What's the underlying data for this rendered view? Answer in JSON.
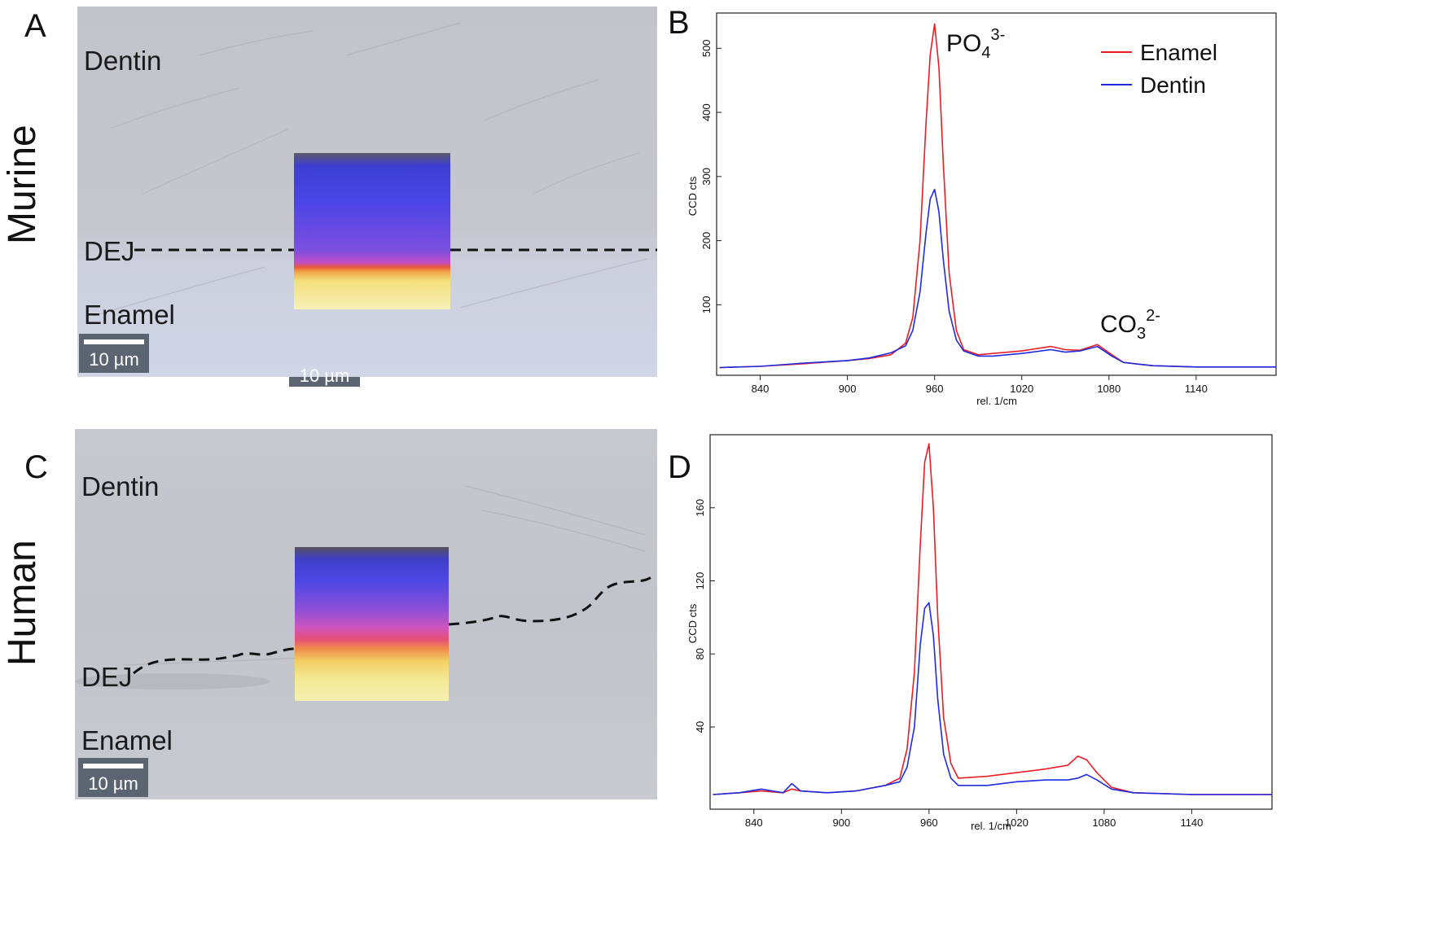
{
  "panels": {
    "a": {
      "letter": "A",
      "species": "Murine"
    },
    "b": {
      "letter": "B"
    },
    "c": {
      "letter": "C",
      "species": "Human"
    },
    "d": {
      "letter": "D"
    }
  },
  "micrographs": {
    "murine": {
      "top_label": "Dentin",
      "dej_label": "DEJ",
      "bottom_label": "Enamel",
      "scale_bar": "10 µm",
      "hidden_scale_bar": "10 µm"
    },
    "human": {
      "top_label": "Dentin",
      "dej_label": "DEJ",
      "bottom_label": "Enamel",
      "scale_bar": "10 µm"
    }
  },
  "colors": {
    "enamel": "#e81e25",
    "dentin": "#1f2be0"
  },
  "chart_data": [
    {
      "type": "line",
      "panel": "B",
      "xlabel": "rel. 1/cm",
      "ylabel": "CCD cts",
      "xlim": [
        810,
        1195
      ],
      "ylim": [
        -10,
        555
      ],
      "xticks": [
        840,
        900,
        960,
        1020,
        1080,
        1140
      ],
      "yticks": [
        100,
        200,
        300,
        400,
        500
      ],
      "legend": {
        "position": "top-right",
        "entries": [
          "Enamel",
          "Dentin"
        ]
      },
      "annotations": [
        {
          "base": "PO",
          "sub": "4",
          "sup": "3-",
          "x": 960,
          "y": 540
        },
        {
          "base": "CO",
          "sub": "3",
          "sup": "2-",
          "x": 1072,
          "y": 65
        }
      ],
      "series": [
        {
          "name": "Enamel",
          "color": "#e81e25",
          "x": [
            812,
            840,
            870,
            900,
            915,
            930,
            940,
            945,
            950,
            954,
            957,
            960,
            963,
            966,
            970,
            975,
            980,
            990,
            1000,
            1020,
            1040,
            1050,
            1060,
            1072,
            1082,
            1090,
            1110,
            1140,
            1170,
            1195
          ],
          "y": [
            2,
            4,
            8,
            13,
            16,
            22,
            40,
            80,
            200,
            380,
            490,
            538,
            470,
            320,
            150,
            60,
            30,
            22,
            24,
            28,
            35,
            30,
            29,
            38,
            22,
            10,
            5,
            3,
            3,
            3
          ]
        },
        {
          "name": "Dentin",
          "color": "#1f2be0",
          "x": [
            812,
            840,
            870,
            900,
            915,
            930,
            940,
            945,
            950,
            954,
            957,
            960,
            963,
            966,
            970,
            975,
            980,
            990,
            1000,
            1020,
            1040,
            1050,
            1060,
            1072,
            1082,
            1090,
            1110,
            1140,
            1170,
            1195
          ],
          "y": [
            2,
            4,
            9,
            13,
            17,
            25,
            36,
            60,
            120,
            210,
            265,
            280,
            245,
            170,
            90,
            45,
            28,
            20,
            20,
            24,
            30,
            26,
            28,
            35,
            20,
            10,
            5,
            3,
            3,
            3
          ]
        }
      ]
    },
    {
      "type": "line",
      "panel": "D",
      "xlabel": "rel. 1/cm",
      "ylabel": "CCD cts",
      "xlim": [
        810,
        1195
      ],
      "ylim": [
        -5,
        200
      ],
      "xticks": [
        840,
        900,
        960,
        1020,
        1080,
        1140
      ],
      "yticks": [
        40,
        80,
        120,
        160
      ],
      "series": [
        {
          "name": "Enamel",
          "color": "#e81e25",
          "x": [
            812,
            830,
            845,
            860,
            866,
            872,
            890,
            910,
            930,
            940,
            945,
            950,
            954,
            957,
            960,
            963,
            966,
            970,
            975,
            980,
            1000,
            1020,
            1040,
            1055,
            1062,
            1068,
            1075,
            1085,
            1100,
            1140,
            1170,
            1195
          ],
          "y": [
            3,
            4,
            5,
            4,
            6,
            5,
            4,
            5,
            8,
            12,
            28,
            70,
            140,
            185,
            195,
            160,
            100,
            45,
            20,
            12,
            13,
            15,
            17,
            19,
            24,
            22,
            15,
            7,
            4,
            3,
            3,
            3
          ]
        },
        {
          "name": "Dentin",
          "color": "#1f2be0",
          "x": [
            812,
            830,
            845,
            860,
            866,
            872,
            890,
            910,
            930,
            940,
            945,
            950,
            954,
            957,
            960,
            963,
            966,
            970,
            975,
            980,
            1000,
            1020,
            1040,
            1055,
            1062,
            1068,
            1075,
            1085,
            1100,
            1140,
            1170,
            1195
          ],
          "y": [
            3,
            4,
            6,
            4,
            9,
            5,
            4,
            5,
            8,
            10,
            18,
            40,
            85,
            105,
            108,
            90,
            55,
            25,
            12,
            8,
            8,
            10,
            11,
            11,
            12,
            14,
            11,
            6,
            4,
            3,
            3,
            3
          ]
        }
      ]
    }
  ]
}
